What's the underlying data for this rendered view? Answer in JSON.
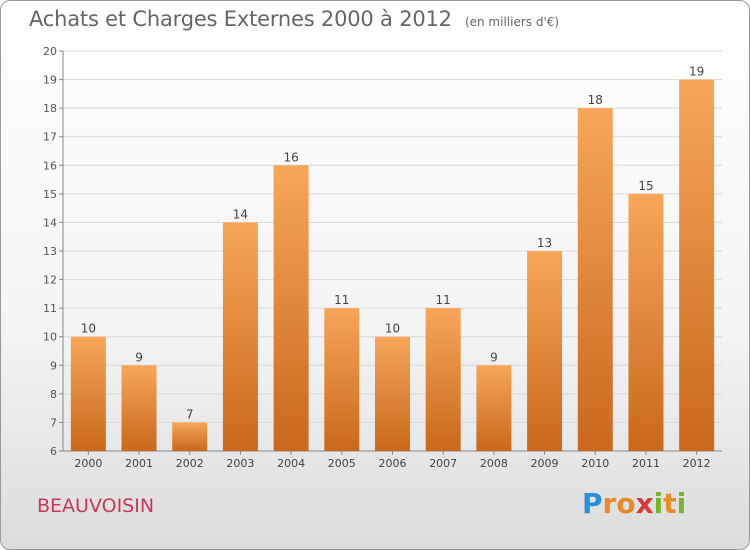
{
  "title": "Achats et Charges Externes 2000 à 2012",
  "subtitle": "(en milliers d'€)",
  "commune": "BEAUVOISIN",
  "logo": {
    "letters": [
      "P",
      "r",
      "o",
      "x",
      "i",
      "t",
      "i"
    ],
    "colors": [
      "#2a8fd6",
      "#e8892a",
      "#e8892a",
      "#d63a3a",
      "#7ab32e",
      "#e8892a",
      "#7ab32e"
    ]
  },
  "colors": {
    "bar_top": "#f7a65a",
    "bar_bottom": "#c9681c",
    "title": "#666666",
    "commune": "#c8375c"
  },
  "chart_data": {
    "type": "bar",
    "title": "Achats et Charges Externes 2000 à 2012",
    "subtitle": "(en milliers d'€)",
    "categories": [
      "2000",
      "2001",
      "2002",
      "2003",
      "2004",
      "2005",
      "2006",
      "2007",
      "2008",
      "2009",
      "2010",
      "2011",
      "2012"
    ],
    "values": [
      10,
      9,
      7,
      14,
      16,
      11,
      10,
      11,
      9,
      13,
      18,
      15,
      19
    ],
    "ylim": [
      6,
      20
    ],
    "yticks": [
      6,
      7,
      8,
      9,
      10,
      11,
      12,
      13,
      14,
      15,
      16,
      17,
      18,
      19,
      20
    ],
    "grid": true,
    "legend": "none"
  }
}
